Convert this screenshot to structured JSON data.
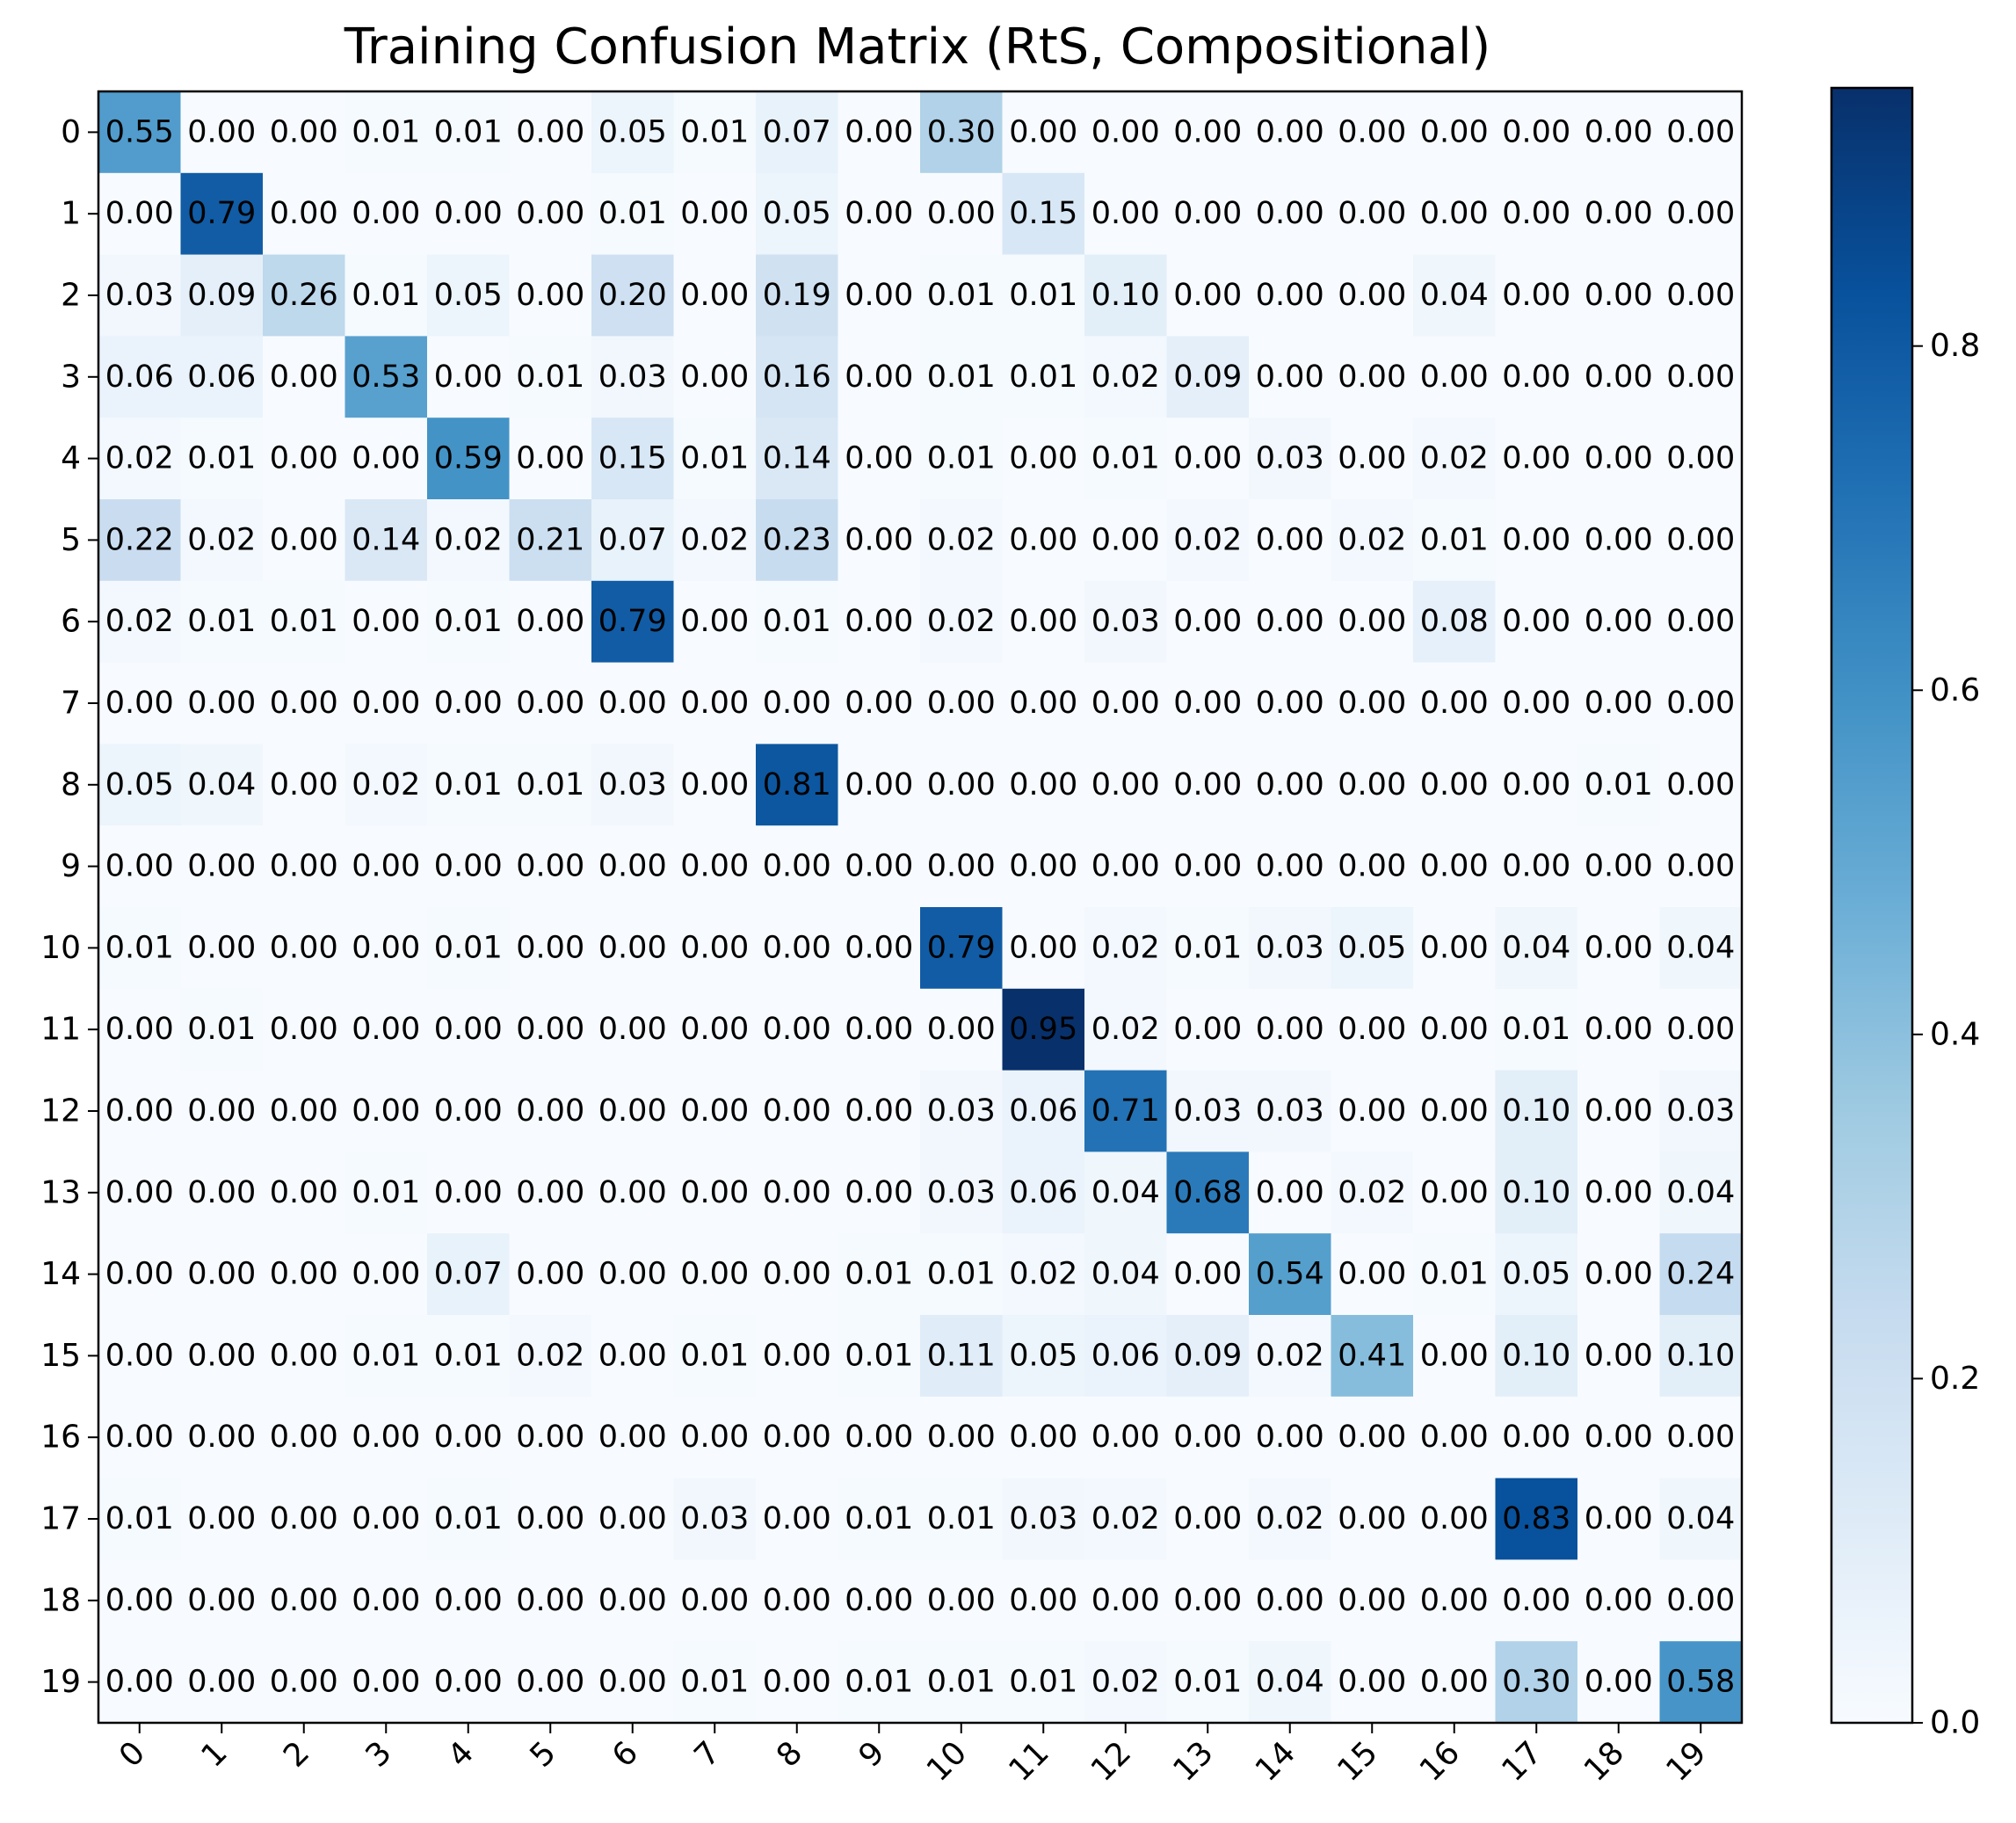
{
  "chart_data": {
    "type": "heatmap",
    "title": "Training Confusion Matrix (RtS, Compositional)",
    "xlabel": "",
    "ylabel": "",
    "x_labels": [
      "0",
      "1",
      "2",
      "3",
      "4",
      "5",
      "6",
      "7",
      "8",
      "9",
      "10",
      "11",
      "12",
      "13",
      "14",
      "15",
      "16",
      "17",
      "18",
      "19"
    ],
    "y_labels": [
      "0",
      "1",
      "2",
      "3",
      "4",
      "5",
      "6",
      "7",
      "8",
      "9",
      "10",
      "11",
      "12",
      "13",
      "14",
      "15",
      "16",
      "17",
      "18",
      "19"
    ],
    "values": [
      [
        0.55,
        0.0,
        0.0,
        0.01,
        0.01,
        0.0,
        0.05,
        0.01,
        0.07,
        0.0,
        0.3,
        0.0,
        0.0,
        0.0,
        0.0,
        0.0,
        0.0,
        0.0,
        0.0,
        0.0
      ],
      [
        0.0,
        0.79,
        0.0,
        0.0,
        0.0,
        0.0,
        0.01,
        0.0,
        0.05,
        0.0,
        0.0,
        0.15,
        0.0,
        0.0,
        0.0,
        0.0,
        0.0,
        0.0,
        0.0,
        0.0
      ],
      [
        0.03,
        0.09,
        0.26,
        0.01,
        0.05,
        0.0,
        0.2,
        0.0,
        0.19,
        0.0,
        0.01,
        0.01,
        0.1,
        0.0,
        0.0,
        0.0,
        0.04,
        0.0,
        0.0,
        0.0
      ],
      [
        0.06,
        0.06,
        0.0,
        0.53,
        0.0,
        0.01,
        0.03,
        0.0,
        0.16,
        0.0,
        0.01,
        0.01,
        0.02,
        0.09,
        0.0,
        0.0,
        0.0,
        0.0,
        0.0,
        0.0
      ],
      [
        0.02,
        0.01,
        0.0,
        0.0,
        0.59,
        0.0,
        0.15,
        0.01,
        0.14,
        0.0,
        0.01,
        0.0,
        0.01,
        0.0,
        0.03,
        0.0,
        0.02,
        0.0,
        0.0,
        0.0
      ],
      [
        0.22,
        0.02,
        0.0,
        0.14,
        0.02,
        0.21,
        0.07,
        0.02,
        0.23,
        0.0,
        0.02,
        0.0,
        0.0,
        0.02,
        0.0,
        0.02,
        0.01,
        0.0,
        0.0,
        0.0
      ],
      [
        0.02,
        0.01,
        0.01,
        0.0,
        0.01,
        0.0,
        0.79,
        0.0,
        0.01,
        0.0,
        0.02,
        0.0,
        0.03,
        0.0,
        0.0,
        0.0,
        0.08,
        0.0,
        0.0,
        0.0
      ],
      [
        0.0,
        0.0,
        0.0,
        0.0,
        0.0,
        0.0,
        0.0,
        0.0,
        0.0,
        0.0,
        0.0,
        0.0,
        0.0,
        0.0,
        0.0,
        0.0,
        0.0,
        0.0,
        0.0,
        0.0
      ],
      [
        0.05,
        0.04,
        0.0,
        0.02,
        0.01,
        0.01,
        0.03,
        0.0,
        0.81,
        0.0,
        0.0,
        0.0,
        0.0,
        0.0,
        0.0,
        0.0,
        0.0,
        0.0,
        0.01,
        0.0
      ],
      [
        0.0,
        0.0,
        0.0,
        0.0,
        0.0,
        0.0,
        0.0,
        0.0,
        0.0,
        0.0,
        0.0,
        0.0,
        0.0,
        0.0,
        0.0,
        0.0,
        0.0,
        0.0,
        0.0,
        0.0
      ],
      [
        0.01,
        0.0,
        0.0,
        0.0,
        0.01,
        0.0,
        0.0,
        0.0,
        0.0,
        0.0,
        0.79,
        0.0,
        0.02,
        0.01,
        0.03,
        0.05,
        0.0,
        0.04,
        0.0,
        0.04
      ],
      [
        0.0,
        0.01,
        0.0,
        0.0,
        0.0,
        0.0,
        0.0,
        0.0,
        0.0,
        0.0,
        0.0,
        0.95,
        0.02,
        0.0,
        0.0,
        0.0,
        0.0,
        0.01,
        0.0,
        0.0
      ],
      [
        0.0,
        0.0,
        0.0,
        0.0,
        0.0,
        0.0,
        0.0,
        0.0,
        0.0,
        0.0,
        0.03,
        0.06,
        0.71,
        0.03,
        0.03,
        0.0,
        0.0,
        0.1,
        0.0,
        0.03
      ],
      [
        0.0,
        0.0,
        0.0,
        0.01,
        0.0,
        0.0,
        0.0,
        0.0,
        0.0,
        0.0,
        0.03,
        0.06,
        0.04,
        0.68,
        0.0,
        0.02,
        0.0,
        0.1,
        0.0,
        0.04
      ],
      [
        0.0,
        0.0,
        0.0,
        0.0,
        0.07,
        0.0,
        0.0,
        0.0,
        0.0,
        0.01,
        0.01,
        0.02,
        0.04,
        0.0,
        0.54,
        0.0,
        0.01,
        0.05,
        0.0,
        0.24
      ],
      [
        0.0,
        0.0,
        0.0,
        0.01,
        0.01,
        0.02,
        0.0,
        0.01,
        0.0,
        0.01,
        0.11,
        0.05,
        0.06,
        0.09,
        0.02,
        0.41,
        0.0,
        0.1,
        0.0,
        0.1
      ],
      [
        0.0,
        0.0,
        0.0,
        0.0,
        0.0,
        0.0,
        0.0,
        0.0,
        0.0,
        0.0,
        0.0,
        0.0,
        0.0,
        0.0,
        0.0,
        0.0,
        0.0,
        0.0,
        0.0,
        0.0
      ],
      [
        0.01,
        0.0,
        0.0,
        0.0,
        0.01,
        0.0,
        0.0,
        0.03,
        0.0,
        0.01,
        0.01,
        0.03,
        0.02,
        0.0,
        0.02,
        0.0,
        0.0,
        0.83,
        0.0,
        0.04
      ],
      [
        0.0,
        0.0,
        0.0,
        0.0,
        0.0,
        0.0,
        0.0,
        0.0,
        0.0,
        0.0,
        0.0,
        0.0,
        0.0,
        0.0,
        0.0,
        0.0,
        0.0,
        0.0,
        0.0,
        0.0
      ],
      [
        0.0,
        0.0,
        0.0,
        0.0,
        0.0,
        0.0,
        0.0,
        0.01,
        0.0,
        0.01,
        0.01,
        0.01,
        0.02,
        0.01,
        0.04,
        0.0,
        0.0,
        0.3,
        0.0,
        0.58
      ]
    ],
    "value_format": "2 decimals",
    "colormap": "Blues",
    "colorbar": {
      "range": [
        0,
        0.95
      ],
      "ticks": [
        0.0,
        0.2,
        0.4,
        0.6,
        0.8
      ],
      "tick_labels": [
        "0.0",
        "0.2",
        "0.4",
        "0.6",
        "0.8"
      ]
    },
    "grid": false,
    "legend": "none"
  }
}
